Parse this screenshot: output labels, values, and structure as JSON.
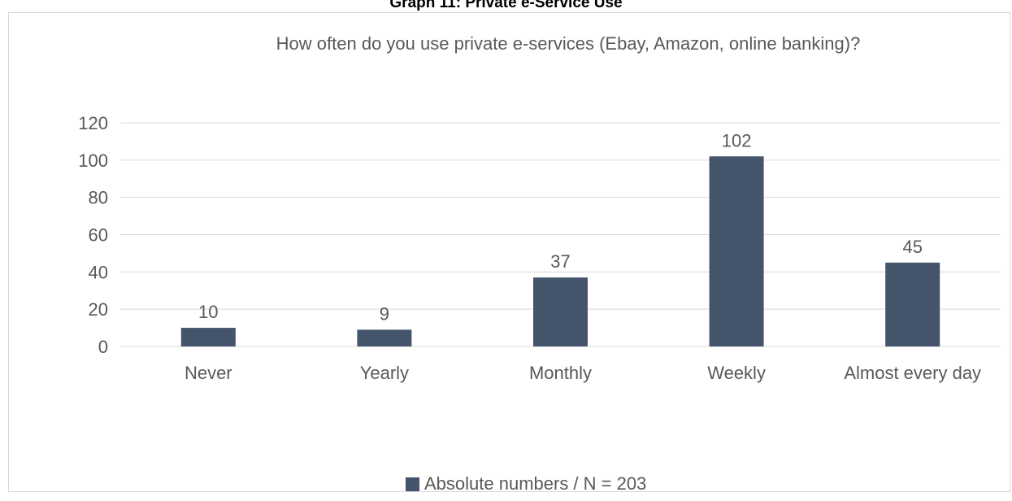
{
  "figure_caption": "Graph 11: Private e-Service Use",
  "chart_data": {
    "type": "bar",
    "title": "How often do you use private e-services (Ebay, Amazon, online banking)?",
    "categories": [
      "Never",
      "Yearly",
      "Monthly",
      "Weekly",
      "Almost every day"
    ],
    "series": [
      {
        "name": "Absolute numbers / N = 203",
        "values": [
          10,
          9,
          37,
          102,
          45
        ],
        "color": "#44546a"
      }
    ],
    "data_labels": [
      "10",
      "9",
      "37",
      "102",
      "45"
    ],
    "ylim": [
      0,
      120
    ],
    "yticks": [
      0,
      20,
      40,
      60,
      80,
      100,
      120
    ],
    "xlabel": "",
    "ylabel": "",
    "grid": true,
    "legend_position": "bottom",
    "colors": {
      "bar": "#44546a",
      "gridline": "#d9d9d9",
      "text": "#595959"
    }
  }
}
